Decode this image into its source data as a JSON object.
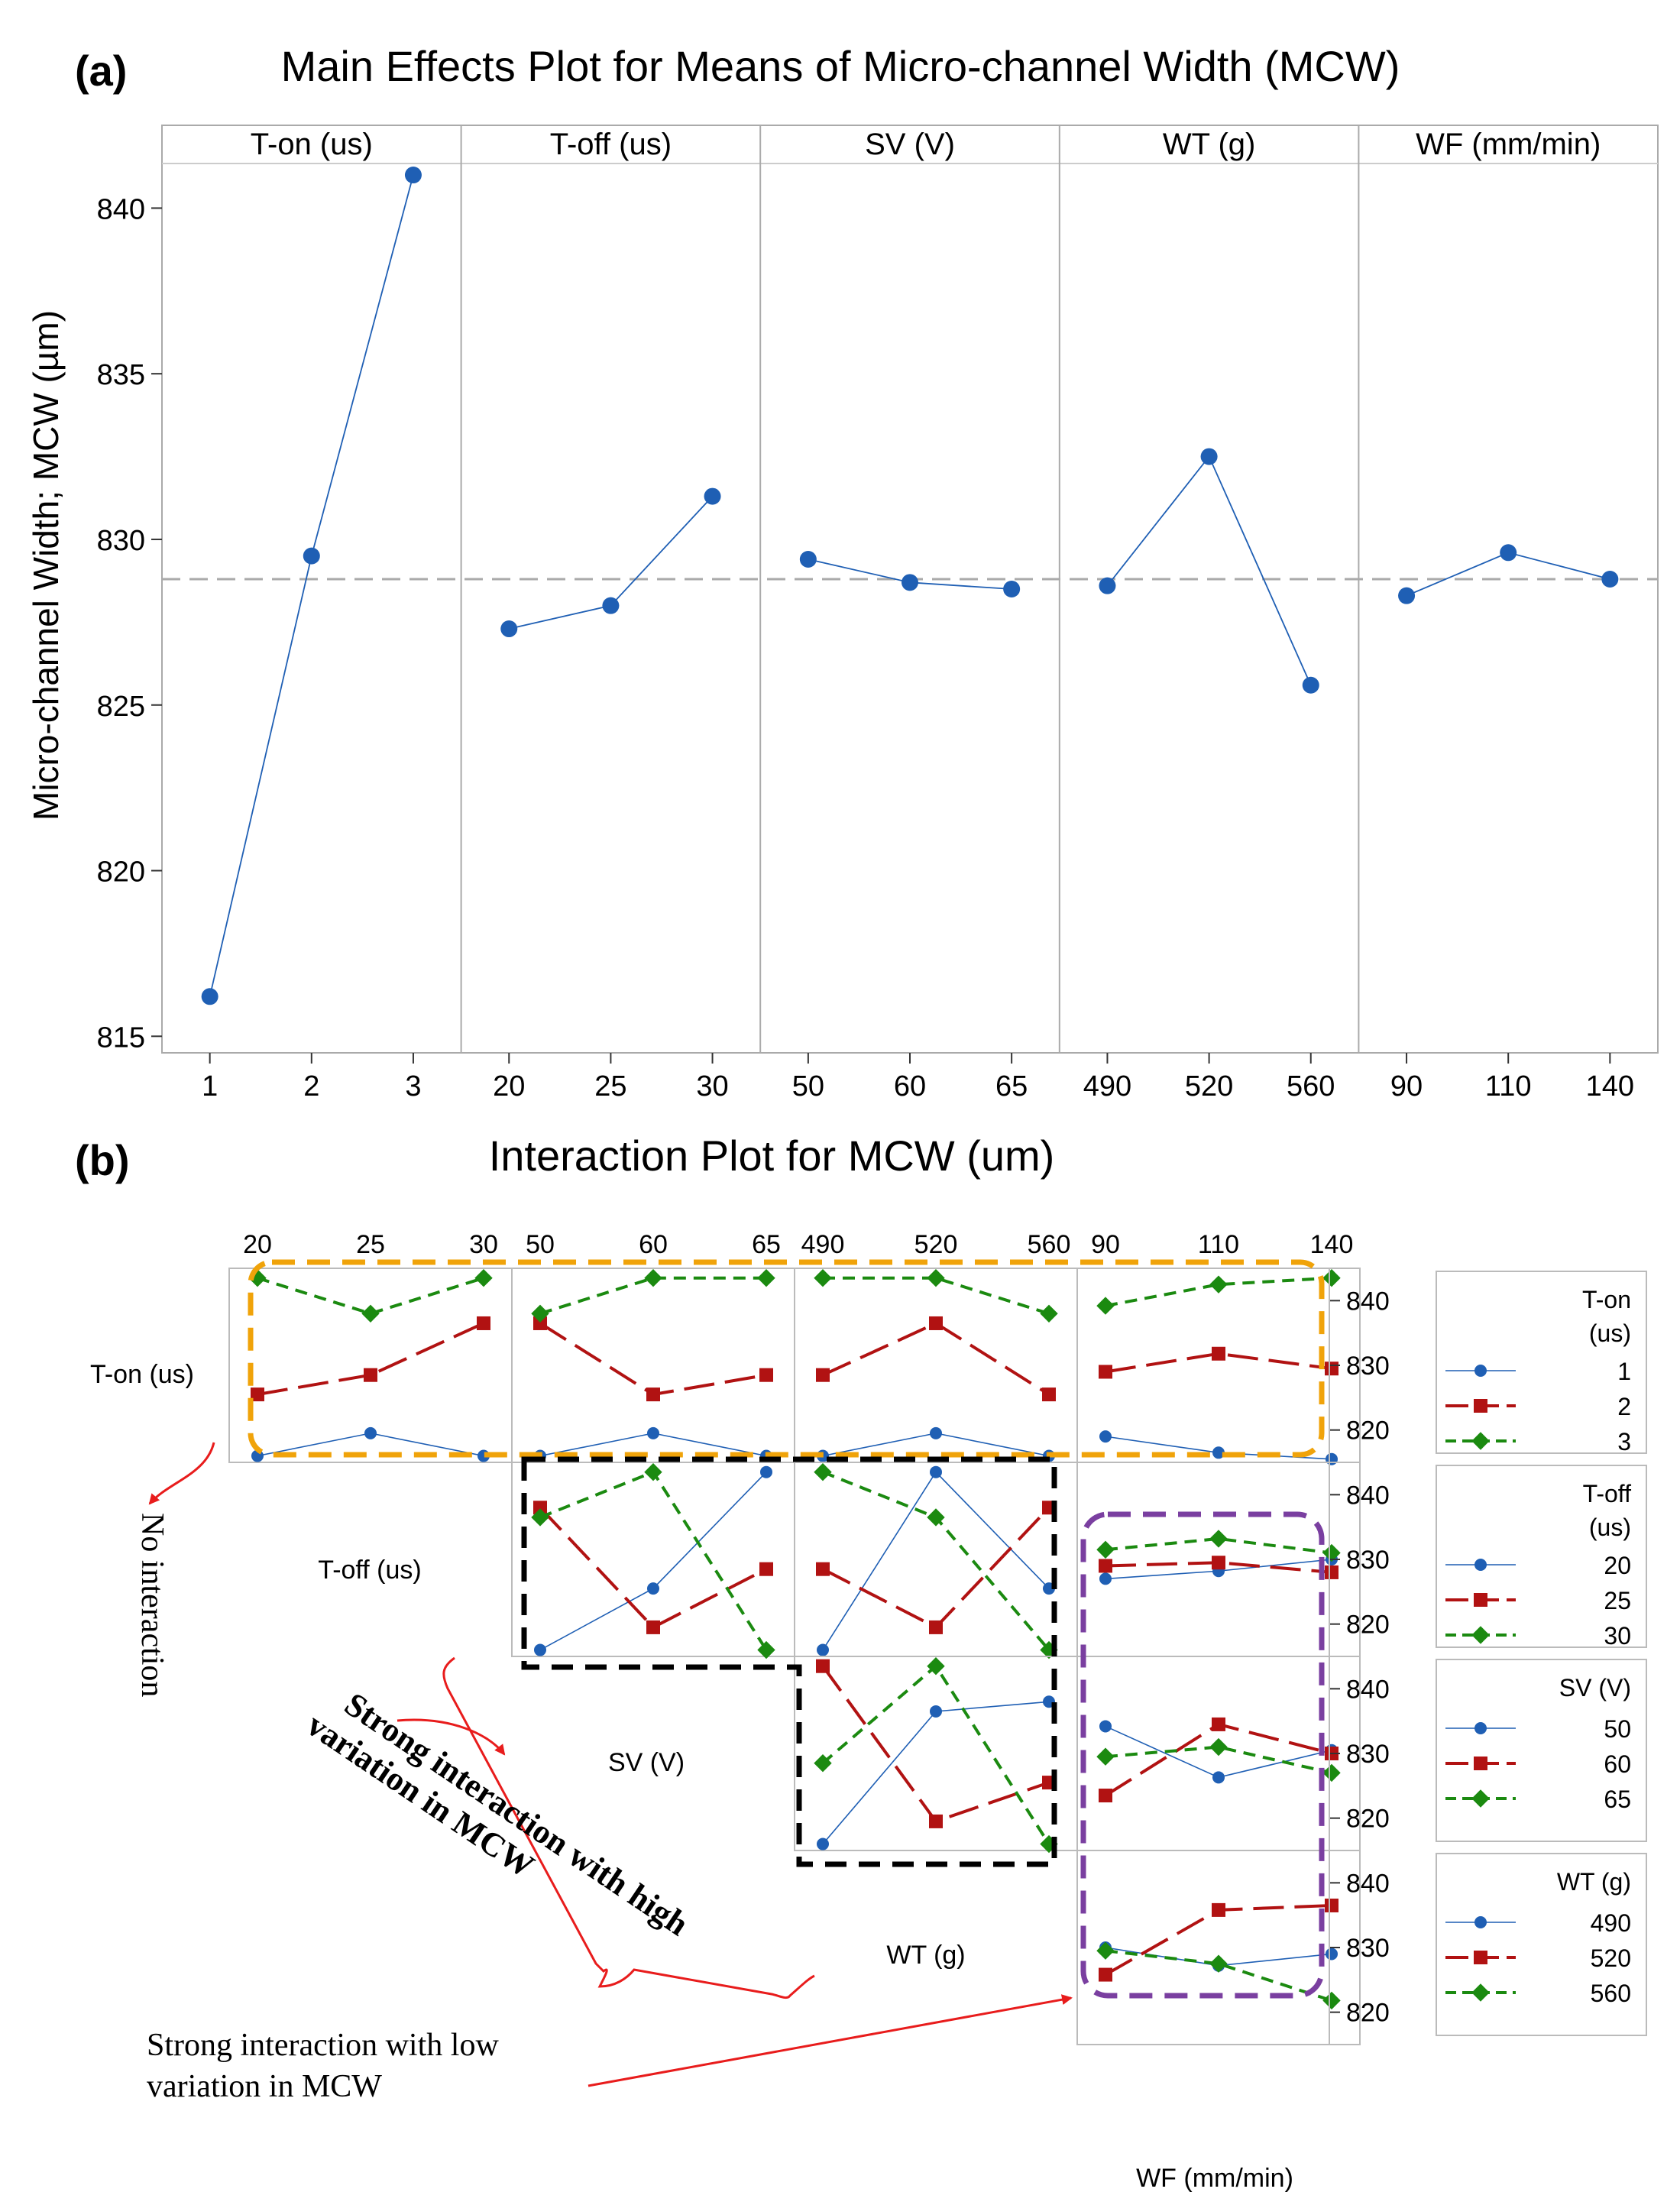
{
  "chart_data": [
    {
      "type": "line",
      "panel_label": "(a)",
      "title": "Main Effects Plot for Means of Micro-channel Width (MCW)",
      "ylabel": "Micro-channel Width; MCW (µm)",
      "ylim": [
        814.5,
        842.5
      ],
      "yticks": [
        815,
        820,
        825,
        830,
        835,
        840
      ],
      "mean": 828.8,
      "factors": [
        {
          "name": "T-on (us)",
          "levels": [
            "1",
            "2",
            "3"
          ],
          "values": [
            816.2,
            829.5,
            841.0
          ]
        },
        {
          "name": "T-off (us)",
          "levels": [
            "20",
            "25",
            "30"
          ],
          "values": [
            827.3,
            828.0,
            831.3
          ]
        },
        {
          "name": "SV (V)",
          "levels": [
            "50",
            "60",
            "65"
          ],
          "values": [
            829.4,
            828.7,
            828.5
          ]
        },
        {
          "name": "WT (g)",
          "levels": [
            "490",
            "520",
            "560"
          ],
          "values": [
            828.6,
            832.5,
            825.6
          ]
        },
        {
          "name": "WF (mm/min)",
          "levels": [
            "90",
            "110",
            "140"
          ],
          "values": [
            828.3,
            829.6,
            828.8
          ]
        }
      ]
    },
    {
      "type": "line",
      "panel_label": "(b)",
      "title": "Interaction Plot for MCW (um)",
      "ylim": [
        815,
        845
      ],
      "yticks": [
        820,
        830,
        840
      ],
      "col_factors": [
        {
          "name": "T-off (us)",
          "levels": [
            "20",
            "25",
            "30"
          ]
        },
        {
          "name": "SV (V)",
          "levels": [
            "50",
            "60",
            "65"
          ]
        },
        {
          "name": "WT (g)",
          "levels": [
            "490",
            "520",
            "560"
          ]
        },
        {
          "name": "WF (mm/min)",
          "levels": [
            "90",
            "110",
            "140"
          ]
        }
      ],
      "row_factors": [
        {
          "name": "T-on (us)",
          "legend_title": [
            "T-on",
            "(us)"
          ],
          "levels": [
            "1",
            "2",
            "3"
          ]
        },
        {
          "name": "T-off (us)",
          "legend_title": [
            "T-off",
            "(us)"
          ],
          "levels": [
            "20",
            "25",
            "30"
          ]
        },
        {
          "name": "SV (V)",
          "legend_title": [
            "SV (V)"
          ],
          "levels": [
            "50",
            "60",
            "65"
          ]
        },
        {
          "name": "WT (g)",
          "legend_title": [
            "WT (g)"
          ],
          "levels": [
            "490",
            "520",
            "560"
          ]
        }
      ],
      "cells": [
        {
          "row": 0,
          "col": 0,
          "series": [
            [
              816.0,
              819.5,
              816.0
            ],
            [
              825.5,
              828.5,
              836.5
            ],
            [
              843.5,
              838.0,
              843.5
            ]
          ]
        },
        {
          "row": 0,
          "col": 1,
          "series": [
            [
              816.0,
              819.5,
              816.0
            ],
            [
              836.5,
              825.5,
              828.5
            ],
            [
              838.0,
              843.5,
              843.5
            ]
          ]
        },
        {
          "row": 0,
          "col": 2,
          "series": [
            [
              816.0,
              819.5,
              816.0
            ],
            [
              828.5,
              836.5,
              825.5
            ],
            [
              843.5,
              843.5,
              838.0
            ]
          ]
        },
        {
          "row": 0,
          "col": 3,
          "series": [
            [
              819.0,
              816.5,
              815.5
            ],
            [
              829.0,
              831.8,
              829.5
            ],
            [
              839.2,
              842.5,
              843.5
            ]
          ]
        },
        {
          "row": 1,
          "col": 1,
          "series": [
            [
              816.0,
              825.5,
              843.5
            ],
            [
              838.0,
              819.5,
              828.5
            ],
            [
              836.5,
              843.5,
              816.0
            ]
          ]
        },
        {
          "row": 1,
          "col": 2,
          "series": [
            [
              816.0,
              843.5,
              825.5
            ],
            [
              828.5,
              819.5,
              838.0
            ],
            [
              843.5,
              836.5,
              816.0
            ]
          ]
        },
        {
          "row": 1,
          "col": 3,
          "series": [
            [
              827.0,
              828.2,
              830.0
            ],
            [
              829.0,
              829.5,
              828.0
            ],
            [
              831.5,
              833.2,
              831.0
            ]
          ]
        },
        {
          "row": 2,
          "col": 2,
          "series": [
            [
              816.0,
              836.5,
              838.0
            ],
            [
              843.5,
              819.5,
              825.5
            ],
            [
              828.5,
              843.5,
              816.0
            ]
          ]
        },
        {
          "row": 2,
          "col": 3,
          "series": [
            [
              834.2,
              826.3,
              830.5
            ],
            [
              823.5,
              834.5,
              830.0
            ],
            [
              829.5,
              831.0,
              827.0
            ]
          ]
        },
        {
          "row": 3,
          "col": 3,
          "series": [
            [
              830.0,
              827.2,
              829.0
            ],
            [
              825.8,
              835.8,
              836.5
            ],
            [
              829.5,
              827.5,
              821.8
            ]
          ]
        }
      ],
      "annotations": [
        {
          "id": "no",
          "text": [
            "No interaction"
          ]
        },
        {
          "id": "high",
          "text": [
            "Strong interaction with high",
            "variation in MCW"
          ]
        },
        {
          "id": "low",
          "text": [
            "Strong interaction with low",
            "variation in MCW"
          ]
        }
      ]
    }
  ],
  "colors": {
    "series": [
      "#1f5fb4",
      "#b11212",
      "#1b8a10"
    ],
    "orange": "#f0a30a",
    "purple": "#7a3fa0",
    "black": "#000000",
    "arrow": "#e81c1c",
    "gridline": "#aaaaaa",
    "meanline": "#aaaaaa"
  }
}
